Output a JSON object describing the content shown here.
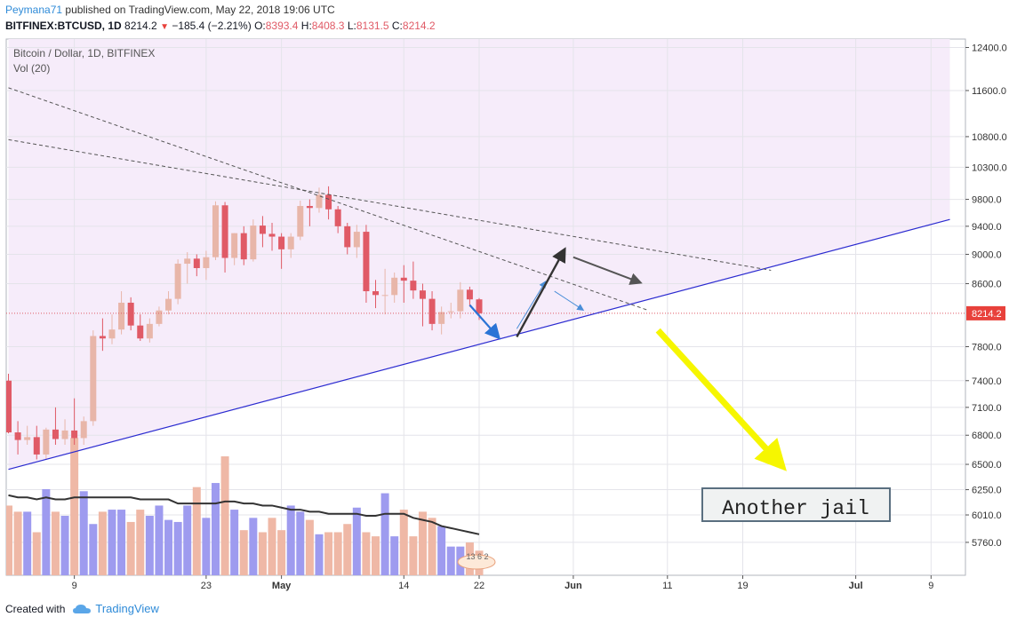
{
  "header": {
    "author": "Peymana71",
    "published_text": "published on TradingView.com, May 22, 2018 19:06 UTC",
    "symbol_line": "BITFINEX:BTCUSD, 1D",
    "last_price": "8214.2",
    "change_arrow": "▼",
    "change": "−185.4 (−2.21%)",
    "ohlc": {
      "o_label": "O:",
      "o": "8393.4",
      "h_label": "H:",
      "h": "8408.3",
      "l_label": "L:",
      "l": "8131.5",
      "c_label": "C:",
      "c": "8214.2"
    }
  },
  "legend": {
    "title": "Bitcoin / Dollar, 1D, BITFINEX",
    "volume": "Vol (20)"
  },
  "footer": {
    "created_with": "Created with",
    "brand": "TradingView"
  },
  "annotation": {
    "text": "Another jail"
  },
  "volume_badge": "13 6 2",
  "colors": {
    "up": "#e8b6a9",
    "down": "#e05a66",
    "vol_up": "#9e9bef",
    "vol_down": "#efb8a6",
    "trend": "#2b2bd0",
    "zone": "#f6ecfa",
    "arrow_yellow": "#f6f600",
    "price_label": "#e8413b"
  },
  "chart_data": {
    "type": "candlestick",
    "title": "Bitcoin / Dollar, 1D, BITFINEX",
    "y_scale": "log",
    "y_ticks": [
      12400,
      11600,
      10800,
      10300,
      9800,
      9400,
      9000,
      8600,
      8214.2,
      7800,
      7400,
      7100,
      6800,
      6500,
      6250,
      6010,
      5760
    ],
    "y_tick_labels": [
      "12400.0",
      "11600.0",
      "10800.0",
      "10300.0",
      "9800.0",
      "9400.0",
      "9000.0",
      "8600.0",
      "8214.2",
      "7800.0",
      "7400.0",
      "7100.0",
      "6800.0",
      "6500.0",
      "6250.0",
      "6010.0",
      "5760.0"
    ],
    "x_tick_labels": [
      "9",
      "23",
      "May",
      "14",
      "22",
      "Jun",
      "11",
      "19",
      "Jul",
      "9"
    ],
    "last_price": 8214.2,
    "dates": [
      "Apr 2",
      "Apr 3",
      "Apr 4",
      "Apr 5",
      "Apr 6",
      "Apr 7",
      "Apr 8",
      "Apr 9",
      "Apr 10",
      "Apr 11",
      "Apr 12",
      "Apr 13",
      "Apr 14",
      "Apr 15",
      "Apr 16",
      "Apr 17",
      "Apr 18",
      "Apr 19",
      "Apr 20",
      "Apr 21",
      "Apr 22",
      "Apr 23",
      "Apr 24",
      "Apr 25",
      "Apr 26",
      "Apr 27",
      "Apr 28",
      "Apr 29",
      "Apr 30",
      "May 1",
      "May 2",
      "May 3",
      "May 4",
      "May 5",
      "May 6",
      "May 7",
      "May 8",
      "May 9",
      "May 10",
      "May 11",
      "May 12",
      "May 13",
      "May 14",
      "May 15",
      "May 16",
      "May 17",
      "May 18",
      "May 19",
      "May 20",
      "May 21",
      "May 22"
    ],
    "open": [
      7400,
      6830,
      6750,
      6780,
      6600,
      6860,
      6760,
      6850,
      6770,
      6950,
      7930,
      7900,
      8010,
      8350,
      8060,
      7900,
      8080,
      8250,
      8400,
      8870,
      8940,
      8810,
      8960,
      9710,
      8950,
      9300,
      8930,
      9410,
      9290,
      9250,
      9070,
      9250,
      9700,
      9670,
      9870,
      9650,
      9400,
      9100,
      9320,
      8500,
      8450,
      8450,
      8680,
      8640,
      8510,
      8400,
      8080,
      8230,
      8240,
      8520,
      8393
    ],
    "close": [
      6830,
      6750,
      6780,
      6600,
      6860,
      6760,
      6850,
      6770,
      6950,
      7930,
      7900,
      8010,
      8350,
      8060,
      7900,
      8080,
      8250,
      8400,
      8870,
      8940,
      8810,
      8960,
      9710,
      8950,
      9300,
      8930,
      9410,
      9290,
      9250,
      9070,
      9250,
      9700,
      9670,
      9870,
      9650,
      9400,
      9100,
      9320,
      8500,
      8450,
      8450,
      8680,
      8640,
      8510,
      8400,
      8080,
      8230,
      8240,
      8520,
      8393,
      8214
    ],
    "high": [
      7480,
      6950,
      6900,
      6900,
      6880,
      7100,
      6970,
      7200,
      7000,
      8000,
      8150,
      8200,
      8500,
      8420,
      8200,
      8150,
      8300,
      8500,
      8930,
      9030,
      9000,
      9050,
      9770,
      9760,
      9300,
      9400,
      9500,
      9550,
      9450,
      9300,
      9300,
      9780,
      9800,
      9980,
      10000,
      9700,
      9450,
      9420,
      9420,
      8650,
      8800,
      8750,
      8850,
      8900,
      8600,
      8500,
      8300,
      8350,
      8620,
      8560,
      8410
    ],
    "low": [
      6820,
      6600,
      6700,
      6550,
      6550,
      6700,
      6700,
      6700,
      6700,
      6900,
      7750,
      7830,
      7950,
      8000,
      7870,
      7850,
      8050,
      8200,
      8330,
      8600,
      8700,
      8650,
      8920,
      8750,
      8850,
      8850,
      8900,
      9100,
      9050,
      8800,
      8950,
      9200,
      9400,
      9600,
      9500,
      9300,
      9000,
      8950,
      8350,
      8280,
      8200,
      8350,
      8350,
      8400,
      8050,
      8000,
      7950,
      8150,
      8150,
      8300,
      8130
    ],
    "volume": [
      34,
      31,
      31,
      21,
      42,
      31,
      29,
      67,
      41,
      25,
      31,
      32,
      32,
      26,
      32,
      29,
      34,
      27,
      26,
      34,
      43,
      28,
      45,
      58,
      32,
      22,
      28,
      21,
      28,
      22,
      34,
      31,
      27,
      20,
      21,
      21,
      25,
      33,
      21,
      19,
      40,
      19,
      32,
      19,
      31,
      28,
      24,
      14,
      14,
      16,
      12
    ],
    "volume_ma": [
      39,
      38,
      38,
      37,
      38,
      37,
      37,
      38,
      38,
      38,
      38,
      38,
      38,
      38,
      37,
      37,
      37,
      37,
      35,
      35,
      35,
      35,
      35,
      36,
      36,
      35,
      35,
      34,
      34,
      33,
      32,
      32,
      31,
      31,
      30,
      30,
      30,
      30,
      29,
      29,
      30,
      30,
      30,
      28,
      27,
      26,
      24,
      23,
      22,
      21,
      20
    ],
    "trendlines": [
      {
        "name": "support",
        "points": [
          [
            "Apr 2",
            6450
          ],
          [
            "Jul 12",
            9500
          ]
        ]
      },
      {
        "name": "resistance-upper",
        "points": [
          [
            "Apr 2",
            11650
          ],
          [
            "Jun 10",
            8250
          ]
        ]
      },
      {
        "name": "resistance-lower",
        "points": [
          [
            "Apr 2",
            10750
          ],
          [
            "Jun 23",
            8780
          ]
        ]
      }
    ],
    "projection_arrows": [
      {
        "name": "pullback-arrow",
        "from": [
          "May 22",
          8320
        ],
        "to": [
          "May 25",
          7920
        ]
      },
      {
        "name": "bounce-arrow-small",
        "from": [
          "May 27",
          8020
        ],
        "to": [
          "May 30",
          8620
        ]
      },
      {
        "name": "breakout-arrow",
        "from": [
          "May 27",
          7920
        ],
        "to": [
          "Jun 1",
          9050
        ]
      },
      {
        "name": "retest-arrow",
        "from": [
          "Jun 2",
          8960
        ],
        "to": [
          "Jun 9",
          8620
        ]
      },
      {
        "name": "small-down-arrow",
        "from": [
          "May 31",
          8500
        ],
        "to": [
          "Jun 3",
          8260
        ]
      },
      {
        "name": "breakdown-arrow",
        "from": [
          "Jun 11",
          8000
        ],
        "to": [
          "Jun 24",
          6500
        ]
      }
    ]
  }
}
